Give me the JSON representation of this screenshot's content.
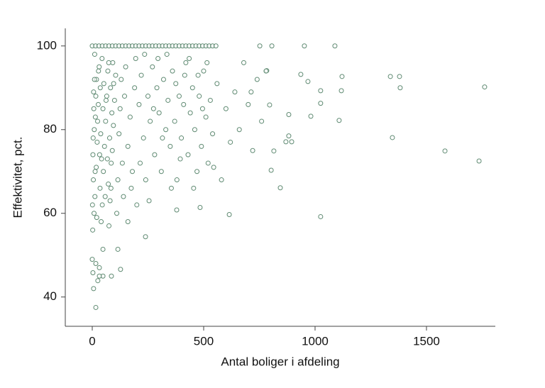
{
  "chart_data": {
    "type": "scatter",
    "xlabel": "Antal boliger i afdeling",
    "ylabel": "Effektivitet, pct.",
    "color": "#5f8a72",
    "xlim": [
      -121,
      1809
    ],
    "ylim": [
      33,
      104.2
    ],
    "xticks": [
      0,
      500,
      1000,
      1500
    ],
    "yticks": [
      40,
      60,
      80,
      100
    ],
    "x": [
      1761,
      1379,
      1338,
      1382,
      1347,
      1583,
      1736,
      1089,
      952,
      1025,
      1025,
      1121,
      1118,
      1108,
      981,
      1025,
      936,
      968,
      882,
      882,
      869,
      895,
      844,
      803,
      815,
      796,
      806,
      752,
      783,
      713,
      615,
      484,
      379,
      239,
      16,
      0,
      16,
      32,
      3,
      25,
      6,
      48,
      86,
      32,
      115,
      127,
      48,
      0,
      15,
      30,
      45,
      60,
      75,
      90,
      105,
      120,
      135,
      150,
      165,
      180,
      195,
      210,
      225,
      240,
      255,
      270,
      285,
      300,
      315,
      330,
      345,
      360,
      375,
      390,
      405,
      420,
      435,
      450,
      465,
      480,
      495,
      510,
      525,
      540,
      555,
      2,
      8,
      12,
      5,
      18,
      3,
      22,
      9,
      14,
      27,
      6,
      19,
      31,
      11,
      40,
      45,
      35,
      50,
      42,
      55,
      38,
      60,
      48,
      65,
      52,
      70,
      44,
      75,
      80,
      72,
      85,
      90,
      78,
      95,
      88,
      100,
      82,
      105,
      92,
      1,
      4,
      7,
      10,
      13,
      16,
      20,
      24,
      28,
      33,
      36,
      58,
      62,
      68,
      74,
      84,
      96,
      110,
      115,
      120,
      125,
      130,
      135,
      140,
      145,
      150,
      160,
      170,
      180,
      190,
      200,
      210,
      220,
      230,
      240,
      250,
      260,
      270,
      280,
      290,
      300,
      310,
      320,
      330,
      340,
      350,
      360,
      370,
      380,
      390,
      400,
      410,
      420,
      430,
      440,
      450,
      460,
      470,
      480,
      490,
      500,
      510,
      520,
      530,
      540,
      560,
      580,
      600,
      620,
      640,
      660,
      680,
      700,
      720,
      740,
      760,
      780,
      160,
      175,
      195,
      215,
      235,
      255,
      275,
      295,
      315,
      335,
      355,
      375,
      395,
      415,
      435,
      455,
      475,
      495,
      515,
      545
    ],
    "y": [
      90.2,
      92.7,
      92.7,
      90,
      78.1,
      74.9,
      72.5,
      100,
      100,
      89.3,
      86.3,
      92.7,
      89.3,
      82.2,
      83.2,
      59.2,
      93.2,
      91.5,
      83.6,
      78.5,
      77.1,
      77.1,
      66.1,
      70.3,
      74.9,
      85.9,
      100,
      100,
      94.1,
      89,
      59.7,
      61.4,
      60.8,
      54.4,
      37.5,
      49,
      48,
      47,
      45.8,
      43.9,
      42,
      45,
      45,
      45,
      51.4,
      46.6,
      51.4,
      100,
      100,
      100,
      100,
      100,
      100,
      100,
      100,
      100,
      100,
      100,
      100,
      100,
      100,
      100,
      100,
      100,
      100,
      100,
      100,
      100,
      100,
      100,
      100,
      100,
      100,
      100,
      100,
      100,
      100,
      100,
      100,
      100,
      100,
      100,
      100,
      100,
      100,
      56,
      60,
      64,
      68,
      71,
      74,
      77,
      80,
      83,
      86,
      89,
      92,
      95,
      98,
      58,
      62,
      66,
      70,
      73,
      76,
      79,
      82,
      85,
      88,
      91,
      94,
      97,
      57,
      63,
      67,
      72,
      75,
      78,
      81,
      84,
      87,
      90,
      93,
      96,
      62,
      78,
      85,
      92,
      70,
      88,
      59,
      82,
      94,
      74,
      90,
      64,
      87,
      73,
      96,
      66,
      91,
      60,
      68,
      79,
      85,
      92,
      72,
      64,
      88,
      95,
      76,
      83,
      70,
      90,
      62,
      86,
      93,
      78,
      68,
      88,
      82,
      95,
      74,
      90,
      84,
      70,
      92,
      80,
      87,
      76,
      94,
      82,
      68,
      88,
      78,
      86,
      96,
      74,
      84,
      90,
      80,
      70,
      88,
      76,
      94,
      83,
      72,
      87,
      79,
      91,
      68,
      85,
      77,
      89,
      80,
      96,
      86,
      75,
      92,
      82,
      94,
      58,
      66,
      97,
      72,
      98,
      63,
      85,
      97,
      78,
      98,
      66,
      91,
      73,
      93,
      97,
      66,
      93,
      85,
      96,
      71
    ]
  }
}
